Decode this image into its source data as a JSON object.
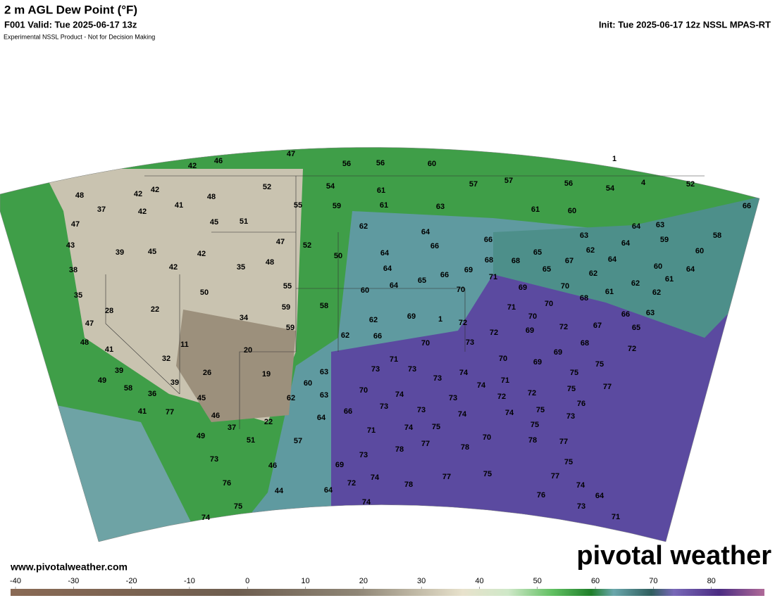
{
  "header": {
    "title": "2 m AGL Dew Point (°F)",
    "valid": "F001 Valid: Tue 2025-06-17 13z",
    "init": "Init: Tue 2025-06-17 12z NSSL MPAS-RT",
    "disclaimer": "Experimental NSSL Product - Not for Decision Making"
  },
  "map": {
    "station_values": [
      42,
      46,
      47,
      56,
      56,
      60,
      1,
      48,
      42,
      42,
      41,
      48,
      52,
      54,
      61,
      57,
      57,
      56,
      54,
      4,
      52,
      66,
      37,
      42,
      47,
      45,
      51,
      55,
      59,
      61,
      63,
      62,
      64,
      61,
      60,
      64,
      63,
      58,
      43,
      39,
      45,
      42,
      42,
      47,
      52,
      35,
      48,
      50,
      64,
      66,
      66,
      65,
      63,
      62,
      64,
      59,
      60,
      38,
      50,
      55,
      60,
      64,
      64,
      65,
      66,
      69,
      68,
      68,
      65,
      67,
      62,
      64,
      60,
      62,
      61,
      64,
      62,
      35,
      28,
      22,
      34,
      59,
      58,
      62,
      69,
      1,
      72,
      70,
      71,
      69,
      71,
      70,
      70,
      70,
      68,
      61,
      66,
      63,
      47,
      48,
      11,
      20,
      59,
      62,
      66,
      70,
      73,
      72,
      69,
      72,
      67,
      68,
      65,
      72,
      41,
      32,
      71,
      69,
      70,
      69,
      39,
      26,
      19,
      63,
      73,
      73,
      73,
      74,
      71,
      75,
      75,
      49,
      39,
      60,
      58,
      70,
      74,
      36,
      45,
      62,
      63,
      74,
      72,
      75,
      77,
      72,
      41,
      77,
      46,
      73,
      73,
      73,
      76,
      66,
      64,
      74,
      74,
      75,
      73,
      37,
      22,
      71,
      74,
      75,
      75,
      49,
      51,
      57,
      77,
      78,
      78,
      70,
      78,
      77,
      73,
      46,
      69,
      73,
      75,
      76,
      72,
      74,
      78,
      77,
      75,
      77,
      74,
      44,
      64,
      76,
      75,
      74,
      73,
      64,
      74,
      71
    ]
  },
  "footer": {
    "website": "www.pivotalweather.com",
    "logo": "pivotal weather"
  },
  "colorbar": {
    "xlim": [
      -40,
      90
    ],
    "xticks": [
      -40,
      -30,
      -20,
      -10,
      0,
      10,
      20,
      30,
      40,
      50,
      60,
      70,
      80
    ]
  }
}
